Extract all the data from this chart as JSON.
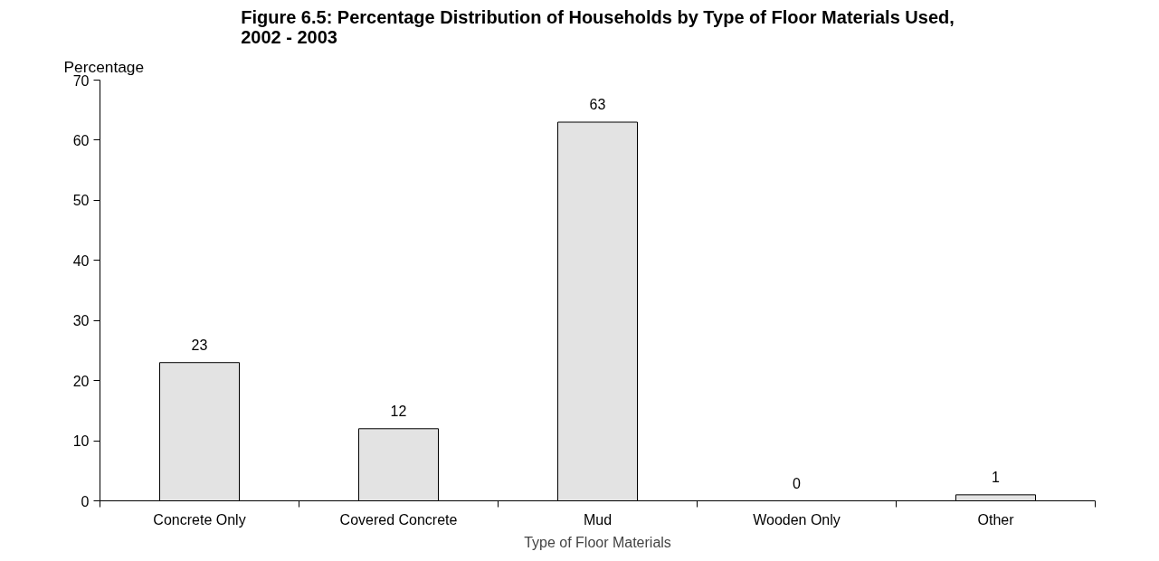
{
  "chart_data": {
    "type": "bar",
    "title": "Figure 6.5: Percentage Distribution of Households by Type of Floor Materials Used, 2002 - 2003",
    "xlabel": "Type of Floor Materials",
    "ylabel": "Percentage",
    "categories": [
      "Concrete Only",
      "Covered Concrete",
      "Mud",
      "Wooden Only",
      "Other"
    ],
    "values": [
      23,
      12,
      63,
      0,
      1
    ],
    "color": "#e3e3e3",
    "ylim": [
      0,
      70
    ],
    "yticks": [
      0,
      10,
      20,
      30,
      40,
      50,
      60,
      70
    ],
    "grid": false,
    "data_labels": true
  }
}
